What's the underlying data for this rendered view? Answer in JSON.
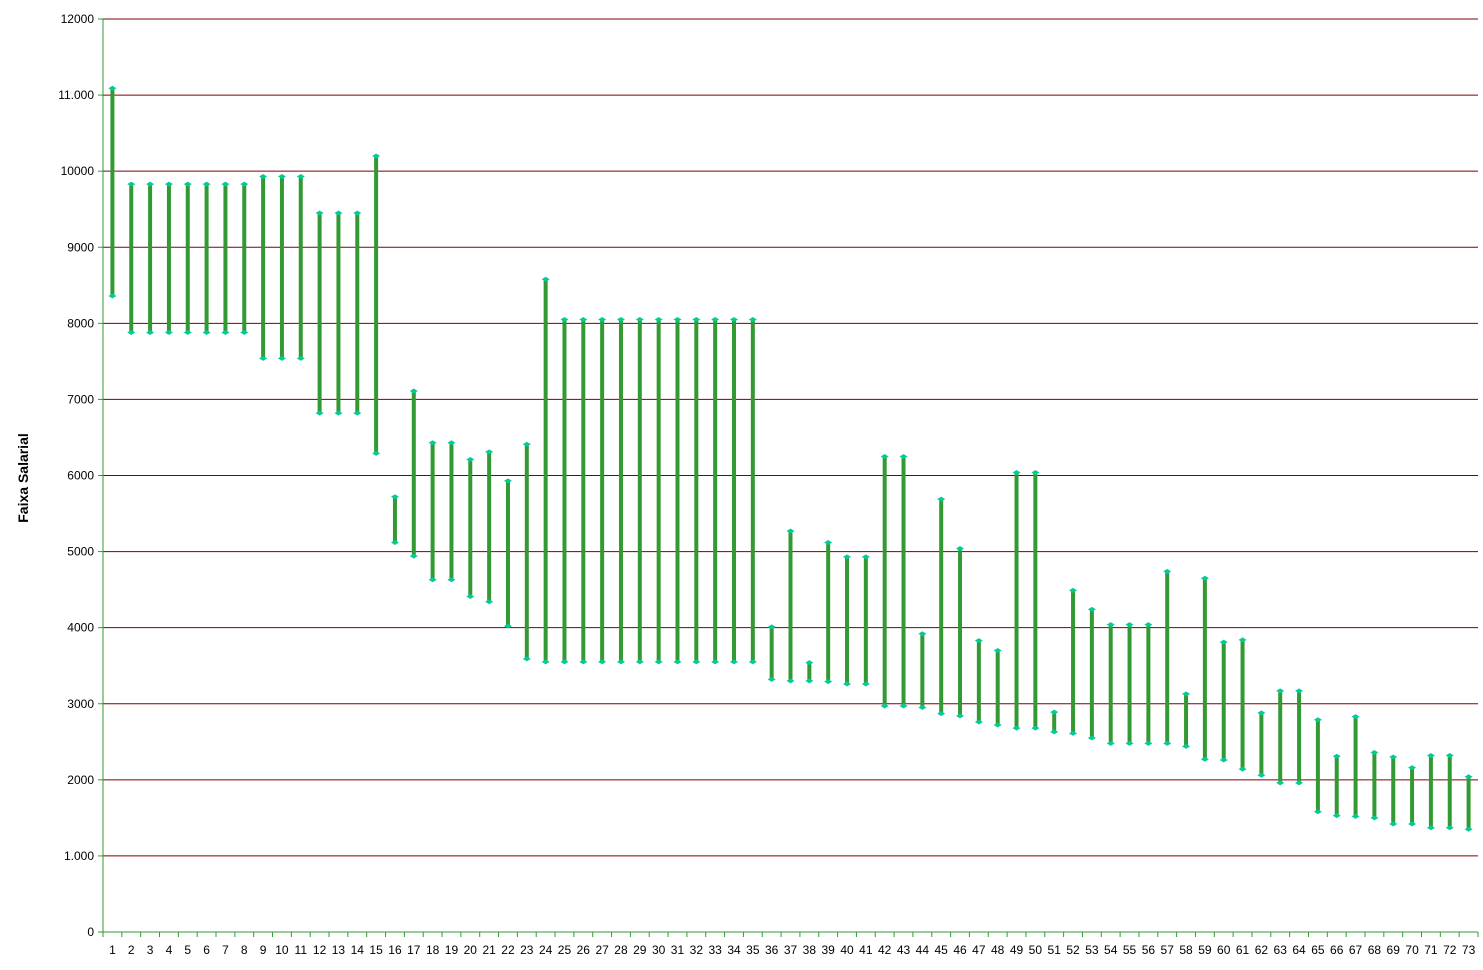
{
  "chart_data": {
    "type": "range-bar",
    "title": "",
    "xlabel": "",
    "ylabel": "Faixa Salarial",
    "ylim": [
      0,
      12000
    ],
    "yticks": [
      0,
      1000,
      2000,
      3000,
      4000,
      5000,
      6000,
      7000,
      8000,
      9000,
      10000,
      11000,
      12000
    ],
    "ytick_labels": [
      "0",
      "1.000",
      "2000",
      "3000",
      "4000",
      "5000",
      "6000",
      "7000",
      "8000",
      "9000",
      "10000",
      "11.000",
      "12000"
    ],
    "grid": true,
    "colors": {
      "bar": "#339933",
      "cap": "#00cc99",
      "grid": "#800000",
      "axis": "#339933"
    },
    "categories": [
      "1",
      "2",
      "3",
      "4",
      "5",
      "6",
      "7",
      "8",
      "9",
      "10",
      "11",
      "12",
      "13",
      "14",
      "15",
      "16",
      "17",
      "18",
      "19",
      "20",
      "21",
      "22",
      "23",
      "24",
      "25",
      "26",
      "27",
      "28",
      "29",
      "30",
      "31",
      "32",
      "33",
      "34",
      "35",
      "36",
      "37",
      "38",
      "39",
      "40",
      "41",
      "42",
      "43",
      "44",
      "45",
      "46",
      "47",
      "48",
      "49",
      "50",
      "51",
      "52",
      "53",
      "54",
      "55",
      "56",
      "57",
      "58",
      "59",
      "60",
      "61",
      "62",
      "63",
      "64",
      "65",
      "66",
      "67",
      "68",
      "69",
      "70",
      "71",
      "72",
      "73"
    ],
    "low": [
      8360,
      7880,
      7880,
      7880,
      7880,
      7880,
      7880,
      7880,
      7540,
      7540,
      7540,
      6820,
      6820,
      6820,
      6290,
      5120,
      4940,
      4630,
      4630,
      4410,
      4340,
      4020,
      3590,
      3550,
      3550,
      3550,
      3550,
      3550,
      3550,
      3550,
      3550,
      3550,
      3550,
      3550,
      3550,
      3320,
      3300,
      3300,
      3290,
      3260,
      3260,
      2970,
      2970,
      2950,
      2870,
      2840,
      2760,
      2720,
      2680,
      2680,
      2630,
      2610,
      2550,
      2480,
      2480,
      2480,
      2480,
      2440,
      2270,
      2260,
      2140,
      2060,
      1960,
      1960,
      1580,
      1530,
      1520,
      1500,
      1420,
      1420,
      1370,
      1370,
      1350
    ],
    "high": [
      11090,
      9830,
      9830,
      9830,
      9830,
      9830,
      9830,
      9830,
      9930,
      9930,
      9930,
      9450,
      9450,
      9450,
      10200,
      5720,
      7110,
      6430,
      6430,
      6210,
      6310,
      5930,
      6410,
      8580,
      8050,
      8050,
      8050,
      8050,
      8050,
      8050,
      8050,
      8050,
      8050,
      8050,
      8050,
      4010,
      5270,
      3540,
      5120,
      4930,
      4930,
      6250,
      6250,
      3920,
      5690,
      5040,
      3830,
      3700,
      6040,
      6040,
      2890,
      4490,
      4240,
      4040,
      4040,
      4040,
      4740,
      3130,
      4650,
      3810,
      3840,
      2880,
      3170,
      3170,
      2790,
      2310,
      2830,
      2360,
      2300,
      2160,
      2320,
      2320,
      2040
    ]
  }
}
